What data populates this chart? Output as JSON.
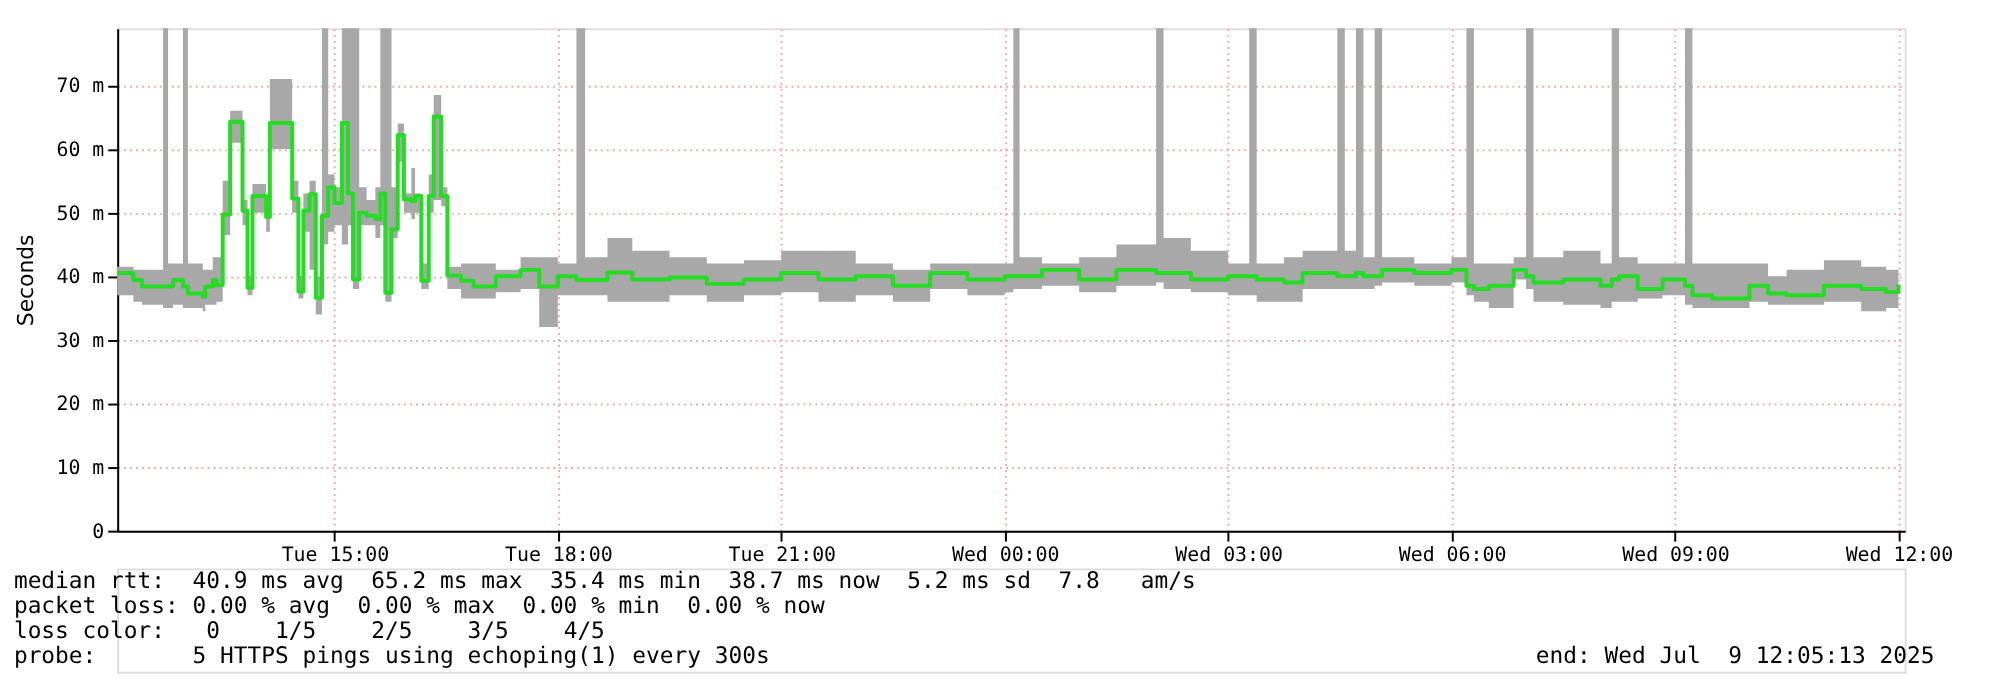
{
  "chart_data": {
    "type": "line",
    "ylabel": "Seconds",
    "xlim": [
      "2025-07-08T12:05",
      "2025-07-09T12:05"
    ],
    "xticks": [
      {
        "value": "2025-07-08T15:00",
        "label": "Tue 15:00"
      },
      {
        "value": "2025-07-08T18:00",
        "label": "Tue 18:00"
      },
      {
        "value": "2025-07-08T21:00",
        "label": "Tue 21:00"
      },
      {
        "value": "2025-07-09T00:00",
        "label": "Wed 00:00"
      },
      {
        "value": "2025-07-09T03:00",
        "label": "Wed 03:00"
      },
      {
        "value": "2025-07-09T06:00",
        "label": "Wed 06:00"
      },
      {
        "value": "2025-07-09T09:00",
        "label": "Wed 09:00"
      },
      {
        "value": "2025-07-09T12:00",
        "label": "Wed 12:00"
      }
    ],
    "ylim": [
      0,
      79
    ],
    "yticks": [
      0,
      {
        "value": 10,
        "label": "10 m"
      },
      {
        "value": 20,
        "label": "20 m"
      },
      {
        "value": 30,
        "label": "30 m"
      },
      {
        "value": 40,
        "label": "40 m"
      },
      {
        "value": 50,
        "label": "50 m"
      },
      {
        "value": 60,
        "label": "60 m"
      },
      {
        "value": 70,
        "label": "70 m"
      }
    ],
    "grid": true,
    "line_style": "solid",
    "marker": "none",
    "annotations": [
      "median rtt:  40.9 ms avg  65.2 ms max  35.4 ms min  38.7 ms now  5.2 ms sd  7.8   am/s",
      "packet loss: 0.00 % avg  0.00 % max  0.00 % min  0.00 % now",
      "loss color:   0    1/5    2/5    3/5    4/5",
      "probe:       5 HTTPS pings using echoping(1) every 300s",
      "end: Wed Jul  9 12:05:13 2025"
    ],
    "series": [
      {
        "type": "step",
        "color": "#22dd22",
        "x": [
          "2025-07-08T12:05",
          "2025-07-08T12:18",
          "2025-07-08T12:25",
          "2025-07-08T12:42",
          "2025-07-08T12:46",
          "2025-07-08T12:50",
          "2025-07-08T12:58",
          "2025-07-08T13:02",
          "2025-07-08T13:14",
          "2025-07-08T13:16",
          "2025-07-08T13:22",
          "2025-07-08T13:25",
          "2025-07-08T13:30",
          "2025-07-08T13:36",
          "2025-07-08T13:46",
          "2025-07-08T13:50",
          "2025-07-08T13:54",
          "2025-07-08T14:05",
          "2025-07-08T14:08",
          "2025-07-08T14:26",
          "2025-07-08T14:31",
          "2025-07-08T14:35",
          "2025-07-08T14:40",
          "2025-07-08T14:45",
          "2025-07-08T14:50",
          "2025-07-08T14:55",
          "2025-07-08T15:00",
          "2025-07-08T15:06",
          "2025-07-08T15:11",
          "2025-07-08T15:15",
          "2025-07-08T15:20",
          "2025-07-08T15:26",
          "2025-07-08T15:33",
          "2025-07-08T15:37",
          "2025-07-08T15:41",
          "2025-07-08T15:46",
          "2025-07-08T15:51",
          "2025-07-08T15:56",
          "2025-07-08T16:02",
          "2025-07-08T16:05",
          "2025-07-08T16:10",
          "2025-07-08T16:16",
          "2025-07-08T16:20",
          "2025-07-08T16:26",
          "2025-07-08T16:31",
          "2025-07-08T16:42",
          "2025-07-08T16:52",
          "2025-07-08T17:10",
          "2025-07-08T17:30",
          "2025-07-08T17:45",
          "2025-07-08T18:00",
          "2025-07-08T18:15",
          "2025-07-08T18:22",
          "2025-07-08T18:40",
          "2025-07-08T19:00",
          "2025-07-08T19:30",
          "2025-07-08T20:00",
          "2025-07-08T20:30",
          "2025-07-08T21:00",
          "2025-07-08T21:30",
          "2025-07-08T22:00",
          "2025-07-08T22:30",
          "2025-07-08T23:00",
          "2025-07-08T23:30",
          "2025-07-09T00:00",
          "2025-07-09T00:07",
          "2025-07-09T00:12",
          "2025-07-09T00:30",
          "2025-07-09T01:00",
          "2025-07-09T01:30",
          "2025-07-09T02:02",
          "2025-07-09T02:08",
          "2025-07-09T02:30",
          "2025-07-09T03:00",
          "2025-07-09T03:17",
          "2025-07-09T03:23",
          "2025-07-09T03:45",
          "2025-07-09T04:00",
          "2025-07-09T04:28",
          "2025-07-09T04:34",
          "2025-07-09T04:43",
          "2025-07-09T04:49",
          "2025-07-09T04:58",
          "2025-07-09T05:04",
          "2025-07-09T05:30",
          "2025-07-09T06:00",
          "2025-07-09T06:12",
          "2025-07-09T06:18",
          "2025-07-09T06:30",
          "2025-07-09T06:50",
          "2025-07-09T07:00",
          "2025-07-09T07:06",
          "2025-07-09T07:30",
          "2025-07-09T08:00",
          "2025-07-09T08:09",
          "2025-07-09T08:15",
          "2025-07-09T08:30",
          "2025-07-09T08:50",
          "2025-07-09T09:08",
          "2025-07-09T09:14",
          "2025-07-09T09:30",
          "2025-07-09T10:00",
          "2025-07-09T10:15",
          "2025-07-09T10:30",
          "2025-07-09T11:00",
          "2025-07-09T11:30",
          "2025-07-09T11:50",
          "2025-07-09T12:00"
        ],
        "values": [
          40.5,
          39.4,
          38.4,
          38.4,
          38.4,
          39.4,
          38.4,
          37.3,
          36.8,
          38.4,
          39.4,
          38.6,
          49.7,
          64.3,
          50.3,
          38.2,
          52.6,
          49.3,
          64.1,
          52.2,
          37.6,
          50.3,
          52.9,
          36.6,
          49.5,
          54,
          51.5,
          64.1,
          53,
          39.5,
          50,
          49.5,
          49,
          53,
          37.4,
          47.4,
          62.2,
          52.1,
          51.8,
          52.6,
          39.3,
          52.6,
          65.1,
          52.6,
          40.1,
          39.3,
          38.4,
          40,
          41,
          38.4,
          40,
          39.4,
          39.4,
          40.6,
          39.5,
          39.8,
          38.8,
          39.5,
          40.5,
          39.5,
          40,
          38.5,
          40.5,
          39.5,
          40,
          40,
          40,
          41,
          39.5,
          41,
          40.5,
          40.5,
          39.5,
          40,
          40,
          39.5,
          39,
          40.5,
          40,
          40,
          40.5,
          40,
          40,
          41,
          40.5,
          41,
          38.5,
          38,
          38.5,
          41,
          40,
          39,
          39.5,
          38.5,
          39.5,
          40,
          38,
          39.5,
          38.5,
          37,
          36.5,
          38.5,
          37.3,
          37,
          38.5,
          38,
          37.5,
          38.7
        ],
        "lower": [
          37,
          36,
          35.5,
          35,
          35,
          35.5,
          35,
          35,
          34.5,
          35.5,
          35.5,
          36,
          46.5,
          61,
          48,
          37,
          50,
          47,
          60,
          50,
          36.5,
          47,
          41,
          34,
          45,
          47,
          48,
          45,
          48,
          38,
          48,
          48,
          46,
          48,
          36,
          46,
          58,
          50,
          49,
          50,
          38,
          50,
          52,
          51,
          38,
          36.5,
          36.5,
          37.5,
          38,
          32,
          37,
          37,
          37,
          36,
          36,
          37,
          36,
          37,
          37.5,
          36,
          37,
          36,
          38,
          37,
          37.5,
          38,
          38,
          38.5,
          37.5,
          38.5,
          39,
          38,
          37.5,
          37,
          37,
          36,
          36,
          38,
          38,
          38,
          38,
          38,
          38.5,
          39,
          38.5,
          39,
          37,
          36,
          35,
          39.5,
          38,
          36,
          35.5,
          35,
          36,
          36,
          36.5,
          37,
          35.5,
          35,
          35,
          36,
          35.5,
          35.5,
          36,
          34.5,
          35,
          36
        ],
        "upper": [
          41.5,
          41,
          41,
          79,
          42,
          42,
          79,
          42,
          41,
          41,
          43,
          43,
          55,
          66,
          52,
          40,
          54.5,
          51,
          71,
          55,
          40,
          53,
          55,
          40,
          79,
          56,
          54,
          79,
          79,
          79,
          54,
          52,
          54,
          79,
          79,
          54,
          64,
          53,
          57,
          53,
          42,
          56,
          68.5,
          54,
          41.5,
          42,
          42,
          41,
          43,
          43,
          42,
          79,
          43,
          46,
          44,
          43,
          42,
          42.5,
          44,
          44,
          42,
          41,
          42,
          42,
          42,
          79,
          43,
          42,
          43,
          45,
          79,
          46,
          44,
          42,
          79,
          42,
          43,
          44,
          79,
          44,
          79,
          43,
          79,
          43,
          42,
          43,
          79,
          42,
          42,
          43,
          79,
          43,
          44,
          42,
          79,
          43,
          42,
          42,
          79,
          42,
          42,
          42,
          40,
          41,
          42.5,
          41.5,
          41,
          41
        ]
      }
    ]
  }
}
